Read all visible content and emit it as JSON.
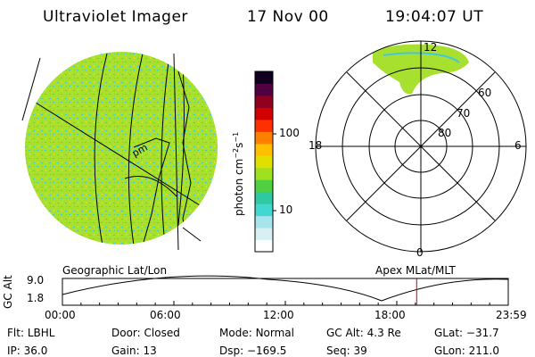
{
  "header": {
    "instrument": "Ultraviolet Imager",
    "date": "17 Nov 00",
    "time": "19:04:07 UT"
  },
  "colorbar": {
    "unit_label": "photon cm",
    "unit_exp1": "−2",
    "unit_s": "s",
    "unit_exp2": "−1",
    "ticks": [
      {
        "value": 100,
        "label": "100"
      },
      {
        "value": 10,
        "label": "10"
      }
    ],
    "colors": [
      "#ffffff",
      "#d8f0f4",
      "#a8e4ec",
      "#40d8d0",
      "#30c8a0",
      "#50d040",
      "#a0e020",
      "#e0e000",
      "#ffc000",
      "#ff8000",
      "#ff3000",
      "#d00000",
      "#900020",
      "#500040",
      "#100020"
    ]
  },
  "geo_panel": {
    "caption": "Geographic Lat/Lon",
    "fill_color": "#9ee040",
    "speckle_color": "#40c8e0",
    "label": "pm"
  },
  "polar_panel": {
    "caption": "Apex MLat/MLT",
    "mlt_labels": {
      "top": "12",
      "left": "18",
      "right": "6",
      "bottom": "0"
    },
    "lat_labels": [
      "60",
      "70",
      "80"
    ],
    "aurora_color": "#b8ee40"
  },
  "altitude_plot": {
    "ylabel": "GC Alt",
    "ytick_top": "9.0",
    "ytick_bottom": "1.8",
    "xticks": [
      "00:00",
      "06:00",
      "12:00",
      "18:00",
      "23:59"
    ],
    "current_time_hours": 19.07,
    "marker_color": "#cc0000"
  },
  "status": {
    "row1": [
      {
        "label": "Flt:",
        "value": "LBHL"
      },
      {
        "label": "Door:",
        "value": "Closed"
      },
      {
        "label": "Mode:",
        "value": "Normal"
      },
      {
        "label": "GC Alt:",
        "value": "4.3 Re"
      },
      {
        "label": "GLat:",
        "value": "−31.7"
      }
    ],
    "row2": [
      {
        "label": "IP:",
        "value": "36.0"
      },
      {
        "label": "Gain:",
        "value": "13"
      },
      {
        "label": "Dsp:",
        "value": "−169.5"
      },
      {
        "label": "Seq:",
        "value": "39"
      },
      {
        "label": "GLon:",
        "value": "211.0"
      }
    ]
  }
}
